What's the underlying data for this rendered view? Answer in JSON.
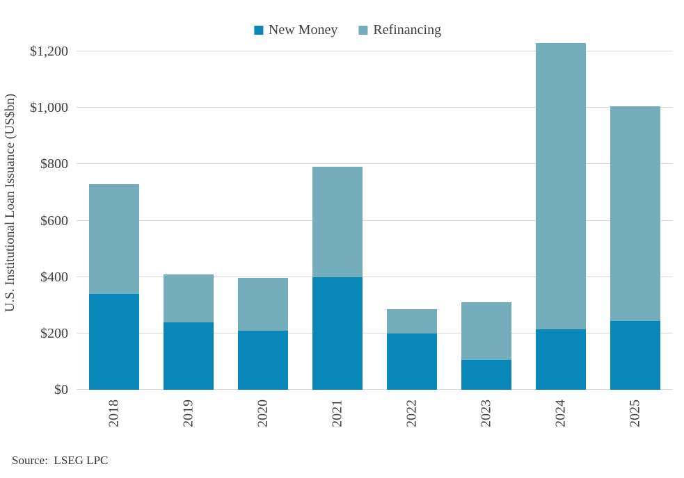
{
  "chart_data": {
    "type": "bar",
    "stacked": true,
    "categories": [
      "2018",
      "2019",
      "2020",
      "2021",
      "2022",
      "2023",
      "2024",
      "2025"
    ],
    "series": [
      {
        "name": "New Money",
        "color": "#0887b8",
        "values": [
          340,
          240,
          210,
          400,
          200,
          105,
          215,
          245
        ]
      },
      {
        "name": "Refinancing",
        "color": "#74aebc",
        "values": [
          390,
          168,
          187,
          390,
          85,
          205,
          1015,
          760
        ]
      }
    ],
    "totals": [
      730,
      408,
      397,
      790,
      285,
      310,
      1230,
      1005
    ],
    "title": "",
    "xlabel": "",
    "ylabel": "U.S. Institutional Loan Issuance (US$bn)",
    "ylim": [
      0,
      1200
    ],
    "ytick_step": 200,
    "ytick_labels": [
      "$0",
      "$200",
      "$400",
      "$600",
      "$800",
      "$1,000",
      "$1,200"
    ],
    "grid": true,
    "gridline_color": "#d9d9d9",
    "legend_position": "top"
  },
  "source_note": "Source:  LSEG LPC"
}
